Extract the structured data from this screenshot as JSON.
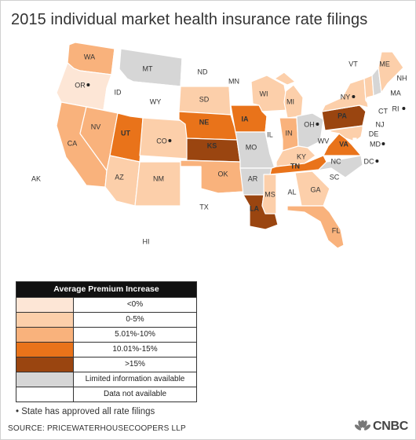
{
  "title": "2015 individual market health insurance rate filings",
  "colors": {
    "lt0": "#fde6d6",
    "p0_5": "#fccfaa",
    "p5_10": "#f9b27c",
    "p10_15": "#e9731a",
    "gt15": "#9a4510",
    "limited": "#d6d6d6",
    "none": "#ffffff"
  },
  "states": [
    {
      "abbr": "WA",
      "category": "p5_10",
      "approved": false
    },
    {
      "abbr": "OR",
      "category": "lt0",
      "approved": true
    },
    {
      "abbr": "CA",
      "category": "p5_10",
      "approved": false
    },
    {
      "abbr": "ID",
      "category": "none",
      "approved": false
    },
    {
      "abbr": "NV",
      "category": "p5_10",
      "approved": false
    },
    {
      "abbr": "UT",
      "category": "p10_15",
      "approved": false
    },
    {
      "abbr": "AZ",
      "category": "p0_5",
      "approved": false
    },
    {
      "abbr": "MT",
      "category": "limited",
      "approved": false
    },
    {
      "abbr": "WY",
      "category": "none",
      "approved": false
    },
    {
      "abbr": "CO",
      "category": "p0_5",
      "approved": true
    },
    {
      "abbr": "NM",
      "category": "p0_5",
      "approved": false
    },
    {
      "abbr": "ND",
      "category": "none",
      "approved": false
    },
    {
      "abbr": "SD",
      "category": "p0_5",
      "approved": false
    },
    {
      "abbr": "NE",
      "category": "p10_15",
      "approved": false
    },
    {
      "abbr": "KS",
      "category": "gt15",
      "approved": false
    },
    {
      "abbr": "OK",
      "category": "p5_10",
      "approved": false
    },
    {
      "abbr": "TX",
      "category": "none",
      "approved": false
    },
    {
      "abbr": "MN",
      "category": "none",
      "approved": false
    },
    {
      "abbr": "IA",
      "category": "p10_15",
      "approved": false
    },
    {
      "abbr": "MO",
      "category": "limited",
      "approved": false
    },
    {
      "abbr": "AR",
      "category": "limited",
      "approved": false
    },
    {
      "abbr": "LA",
      "category": "gt15",
      "approved": false
    },
    {
      "abbr": "WI",
      "category": "p0_5",
      "approved": false
    },
    {
      "abbr": "IL",
      "category": "none",
      "approved": false
    },
    {
      "abbr": "MI",
      "category": "p0_5",
      "approved": false
    },
    {
      "abbr": "IN",
      "category": "p5_10",
      "approved": false
    },
    {
      "abbr": "OH",
      "category": "limited",
      "approved": true
    },
    {
      "abbr": "KY",
      "category": "p0_5",
      "approved": false
    },
    {
      "abbr": "TN",
      "category": "p10_15",
      "approved": false
    },
    {
      "abbr": "MS",
      "category": "p0_5",
      "approved": false
    },
    {
      "abbr": "AL",
      "category": "none",
      "approved": false
    },
    {
      "abbr": "GA",
      "category": "p0_5",
      "approved": false
    },
    {
      "abbr": "FL",
      "category": "p5_10",
      "approved": false
    },
    {
      "abbr": "SC",
      "category": "none",
      "approved": false
    },
    {
      "abbr": "NC",
      "category": "limited",
      "approved": false
    },
    {
      "abbr": "VA",
      "category": "p10_15",
      "approved": false
    },
    {
      "abbr": "WV",
      "category": "none",
      "approved": false
    },
    {
      "abbr": "PA",
      "category": "gt15",
      "approved": false
    },
    {
      "abbr": "NY",
      "category": "p0_5",
      "approved": true
    },
    {
      "abbr": "VT",
      "category": "p0_5",
      "approved": false
    },
    {
      "abbr": "NH",
      "category": "limited",
      "approved": false
    },
    {
      "abbr": "ME",
      "category": "p0_5",
      "approved": false
    },
    {
      "abbr": "MA",
      "category": "none",
      "approved": false
    },
    {
      "abbr": "RI",
      "category": "none",
      "approved": true
    },
    {
      "abbr": "CT",
      "category": "none",
      "approved": false
    },
    {
      "abbr": "NJ",
      "category": "none",
      "approved": false
    },
    {
      "abbr": "DE",
      "category": "none",
      "approved": false
    },
    {
      "abbr": "MD",
      "category": "p0_5",
      "approved": true
    },
    {
      "abbr": "DC",
      "category": "none",
      "approved": true
    },
    {
      "abbr": "AK",
      "category": "none",
      "approved": false
    },
    {
      "abbr": "HI",
      "category": "none",
      "approved": false
    }
  ],
  "legend": {
    "title": "Average Premium Increase",
    "rows": [
      {
        "key": "lt0",
        "label": "<0%"
      },
      {
        "key": "p0_5",
        "label": "0-5%"
      },
      {
        "key": "p5_10",
        "label": "5.01%-10%"
      },
      {
        "key": "p10_15",
        "label": "10.01%-15%"
      },
      {
        "key": "gt15",
        "label": ">15%"
      },
      {
        "key": "limited",
        "label": "Limited information available"
      },
      {
        "key": "none",
        "label": "Data not available"
      }
    ]
  },
  "note": "• State has approved all rate filings",
  "source": "SOURCE: PRICEWATERHOUSECOOPERS LLP",
  "brand": "CNBC"
}
